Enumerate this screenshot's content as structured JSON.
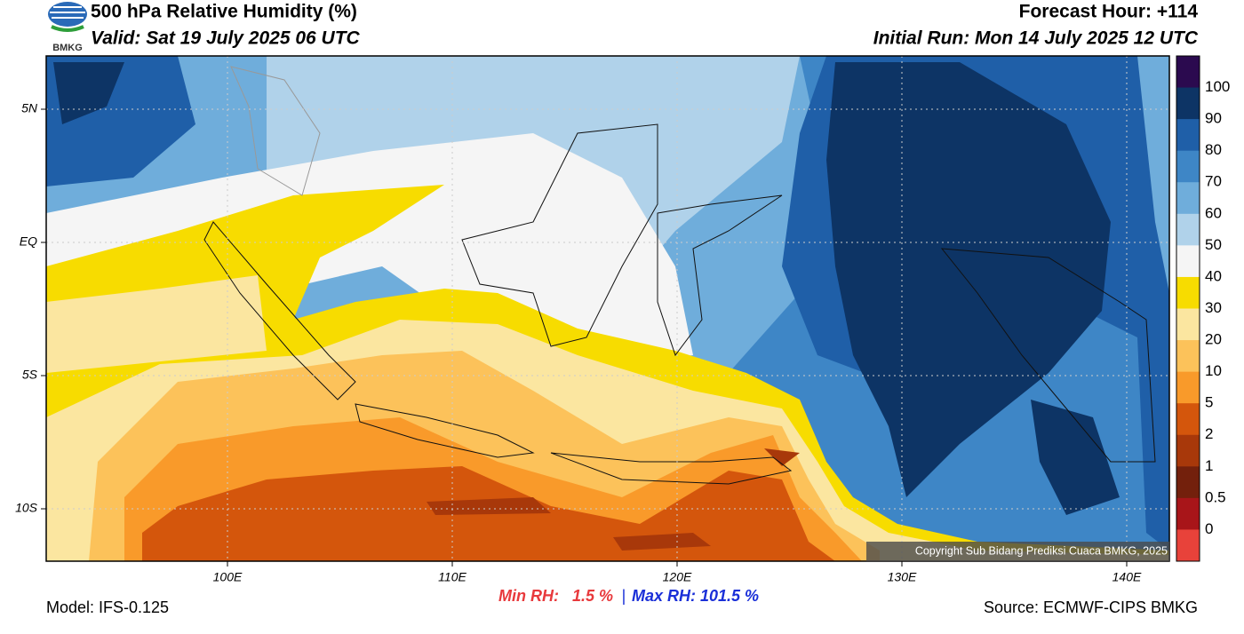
{
  "header": {
    "logo": "BMKG",
    "title": "500 hPa Relative Humidity (%)",
    "valid": "Valid: Sat 19 July 2025 06 UTC",
    "forecast_hour": "Forecast Hour: +114",
    "initial_run": "Initial Run: Mon 14 July 2025 12 UTC"
  },
  "map": {
    "lat_labels": [
      "5N",
      "EQ",
      "5S",
      "10S"
    ],
    "lon_labels": [
      "100E",
      "110E",
      "120E",
      "130E",
      "140E"
    ],
    "copyright": "Copyright Sub Bidang Prediksi Cuaca BMKG, 2025"
  },
  "colorbar": {
    "ticks": [
      100,
      90,
      80,
      70,
      60,
      50,
      40,
      30,
      20,
      10,
      5,
      2,
      1,
      0.5,
      0
    ],
    "colors": [
      "#2b0a4f",
      "#0d3465",
      "#1f5fa8",
      "#3e86c6",
      "#6faddb",
      "#b0d2ea",
      "#f5f5f5",
      "#f7dc00",
      "#fbe6a0",
      "#fcc25a",
      "#f99a2a",
      "#d4560c",
      "#a8380a",
      "#73200c",
      "#a81519",
      "#e8423a"
    ]
  },
  "footer": {
    "model": "Model: IFS-0.125",
    "min_rh": "Min RH:   1.5 %",
    "separator": "|",
    "max_rh": "Max RH: 101.5 %",
    "source": "Source: ECMWF-CIPS BMKG"
  }
}
